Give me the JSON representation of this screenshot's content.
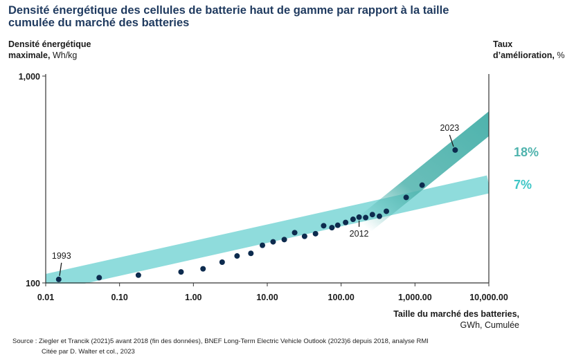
{
  "chart_data": {
    "type": "scatter",
    "title": "Densité énergétique des cellules de batterie haut de gamme par rapport à la taille cumulée du marché des batteries",
    "ylabel_bold": "Densité énergétique maximale,",
    "ylabel_unit": " Wh/kg",
    "right_label_bold": "Taux d’amélioration,",
    "right_label_unit": " %",
    "xlabel_bold": "Taille du marché des batteries,",
    "xlabel_unit": " GWh, Cumulée",
    "x_scale": "log",
    "y_scale": "log",
    "xlim": [
      0.01,
      10000
    ],
    "ylim": [
      100,
      1000
    ],
    "x_ticks": [
      "0.01",
      "0.10",
      "1.00",
      "10.00",
      "100.00",
      "1,000.00",
      "10,000.00"
    ],
    "y_ticks": [
      "100",
      "1,000"
    ],
    "points": [
      {
        "x": 0.015,
        "y": 104
      },
      {
        "x": 0.053,
        "y": 106
      },
      {
        "x": 0.18,
        "y": 109
      },
      {
        "x": 0.68,
        "y": 113
      },
      {
        "x": 1.35,
        "y": 117
      },
      {
        "x": 2.45,
        "y": 126
      },
      {
        "x": 3.9,
        "y": 135
      },
      {
        "x": 6.0,
        "y": 139
      },
      {
        "x": 8.6,
        "y": 152
      },
      {
        "x": 12,
        "y": 158
      },
      {
        "x": 17,
        "y": 162
      },
      {
        "x": 23.5,
        "y": 175
      },
      {
        "x": 32,
        "y": 168
      },
      {
        "x": 45,
        "y": 173
      },
      {
        "x": 58,
        "y": 189
      },
      {
        "x": 75,
        "y": 185
      },
      {
        "x": 90,
        "y": 190
      },
      {
        "x": 115,
        "y": 196
      },
      {
        "x": 145,
        "y": 203
      },
      {
        "x": 175,
        "y": 208
      },
      {
        "x": 215,
        "y": 207
      },
      {
        "x": 265,
        "y": 214
      },
      {
        "x": 330,
        "y": 210
      },
      {
        "x": 410,
        "y": 222
      },
      {
        "x": 760,
        "y": 259
      },
      {
        "x": 1250,
        "y": 297
      },
      {
        "x": 3500,
        "y": 439
      }
    ],
    "annotations": [
      {
        "label": "1993",
        "x": 0.015,
        "y": 104
      },
      {
        "label": "2012",
        "x": 175,
        "y": 208
      },
      {
        "label": "2023",
        "x": 3500,
        "y": 439
      }
    ],
    "bands": [
      {
        "rate": "7%",
        "color": "#8fdcdc"
      },
      {
        "rate": "18%",
        "color": "#4fb3ad"
      }
    ],
    "point_color": "#0d2b4e",
    "grid": false
  },
  "source": {
    "line1": "Source : Ziegler et Trancik (2021)5 avant 2018 (fin des données), BNEF Long-Term Electric Vehicle Outlook (2023)6 depuis 2018, analyse RMI",
    "line2": "Citée par D. Walter et col., 2023"
  }
}
